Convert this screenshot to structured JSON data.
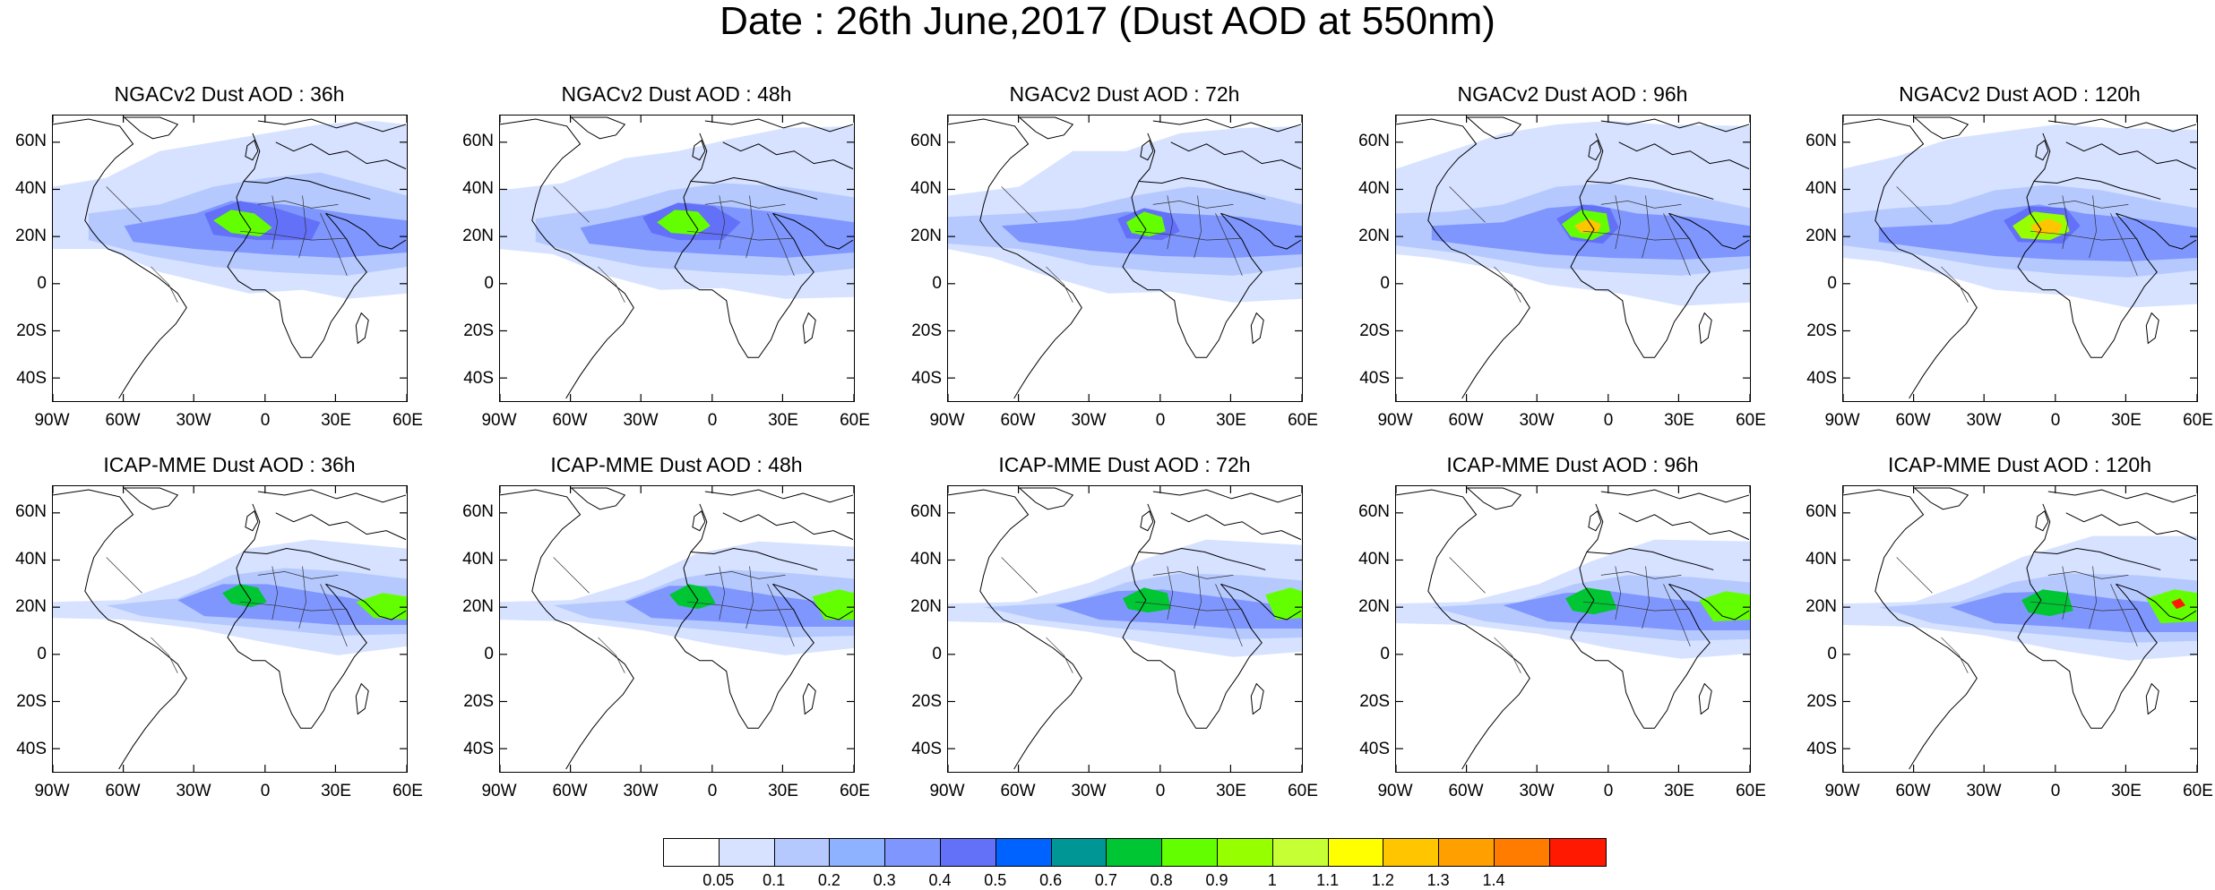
{
  "title": "Date : 26th June,2017 (Dust AOD at 550nm)",
  "panels": [
    {
      "label": "NGACv2 Dust AOD : 36h"
    },
    {
      "label": "NGACv2 Dust AOD : 48h"
    },
    {
      "label": "NGACv2 Dust AOD : 72h"
    },
    {
      "label": "NGACv2 Dust AOD : 96h"
    },
    {
      "label": "NGACv2 Dust AOD : 120h"
    },
    {
      "label": "ICAP-MME Dust AOD : 36h"
    },
    {
      "label": "ICAP-MME Dust AOD : 48h"
    },
    {
      "label": "ICAP-MME Dust AOD : 72h"
    },
    {
      "label": "ICAP-MME Dust AOD : 96h"
    },
    {
      "label": "ICAP-MME Dust AOD : 120h"
    }
  ],
  "lat_ticks": [
    "60N",
    "40N",
    "20N",
    "0",
    "20S",
    "40S"
  ],
  "lon_ticks": [
    "90W",
    "60W",
    "30W",
    "0",
    "30E",
    "60E"
  ],
  "colorbar": {
    "colors": [
      "#ffffff",
      "#d6e2ff",
      "#b5c9ff",
      "#8eb2ff",
      "#7f96ff",
      "#6370f8",
      "#0063ff",
      "#009696",
      "#00c633",
      "#63ff00",
      "#96ff00",
      "#c6ff33",
      "#ffff00",
      "#ffc600",
      "#ffa000",
      "#ff7c00",
      "#ff1900"
    ],
    "labels": [
      "0.05",
      "0.1",
      "0.2",
      "0.3",
      "0.4",
      "0.5",
      "0.6",
      "0.7",
      "0.8",
      "0.9",
      "1",
      "1.1",
      "1.2",
      "1.3",
      "1.4"
    ]
  }
}
